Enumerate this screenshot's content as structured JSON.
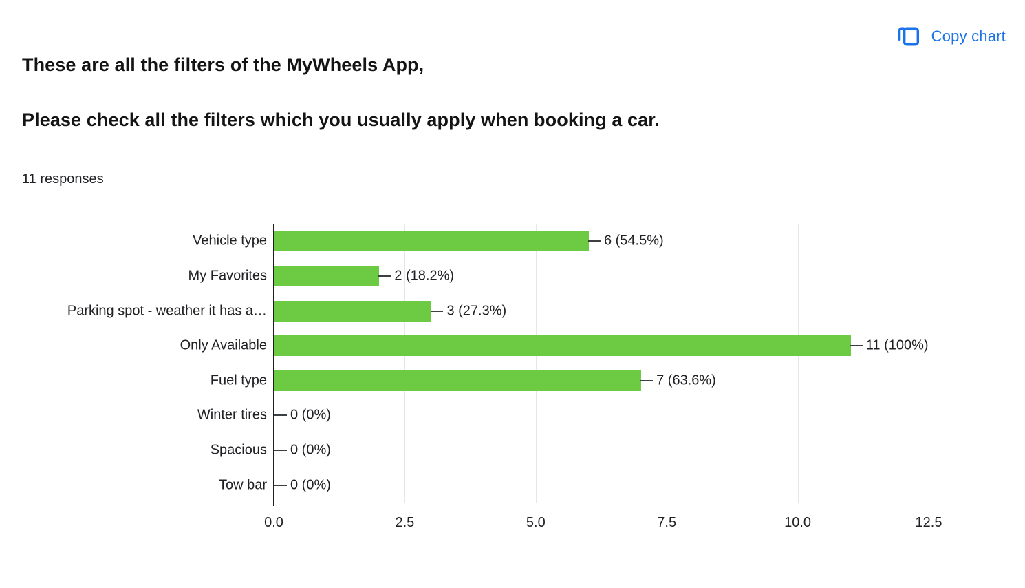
{
  "header": {
    "title_line1": "These are all the filters of the MyWheels App,",
    "title_line2": "Please check all the filters which you usually apply when booking a car.",
    "responses": "11 responses",
    "copy_chart_label": "Copy chart"
  },
  "colors": {
    "bar": "#6dca43",
    "accent_blue": "#1a73e8",
    "gridline": "#e6e6e6",
    "axis": "#1f1f1f",
    "leader": "#3c4043"
  },
  "chart_data": {
    "type": "bar",
    "orientation": "horizontal",
    "title": "These are all the filters of the MyWheels App, Please check all the filters which you usually apply when booking a car.",
    "subtitle": "11 responses",
    "categories": [
      "Vehicle type",
      "My Favorites",
      "Parking spot - weather it has a…",
      "Only Available",
      "Fuel type",
      "Winter tires",
      "Spacious",
      "Tow bar"
    ],
    "values": [
      6,
      2,
      3,
      11,
      7,
      0,
      0,
      0
    ],
    "value_labels": [
      "6 (54.5%)",
      "2 (18.2%)",
      "3 (27.3%)",
      "11 (100%)",
      "7 (63.6%)",
      "0 (0%)",
      "0 (0%)",
      "0 (0%)"
    ],
    "xlabel": "",
    "ylabel": "",
    "xlim": [
      0,
      12.5
    ],
    "xticks": [
      0,
      2.5,
      5,
      7.5,
      10,
      12.5
    ],
    "xtick_labels": [
      "0.0",
      "2.5",
      "5.0",
      "7.5",
      "10.0",
      "12.5"
    ],
    "grid": true,
    "legend": "none"
  }
}
